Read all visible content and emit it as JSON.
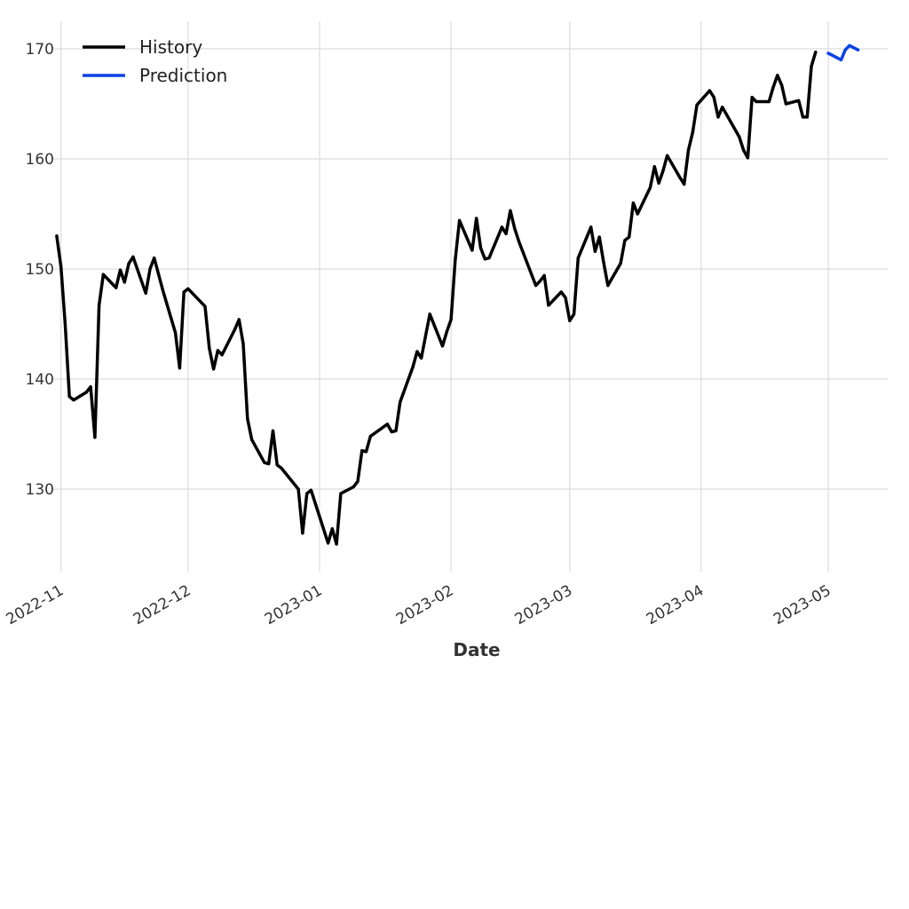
{
  "chart_data": {
    "type": "line",
    "title": "",
    "xlabel": "Date",
    "ylabel": "",
    "grid": true,
    "legend_position": "top-left",
    "x_type": "date",
    "xlim": [
      "2022-10-26",
      "2023-05-15"
    ],
    "ylim": [
      122.5,
      172.5
    ],
    "x_ticks": [
      "2022-11-01",
      "2022-12-01",
      "2023-01-01",
      "2023-02-01",
      "2023-03-01",
      "2023-04-01",
      "2023-05-01"
    ],
    "x_tick_labels": [
      "2022-11",
      "2022-12",
      "2023-01",
      "2023-02",
      "2023-03",
      "2023-04",
      "2023-05"
    ],
    "y_ticks": [
      130,
      140,
      150,
      160,
      170
    ],
    "y_tick_labels": [
      "130",
      "140",
      "150",
      "160",
      "170"
    ],
    "series": [
      {
        "name": "History",
        "color": "#000000",
        "points": [
          [
            "2022-10-31",
            153.0
          ],
          [
            "2022-11-01",
            150.2
          ],
          [
            "2022-11-02",
            145.0
          ],
          [
            "2022-11-03",
            138.4
          ],
          [
            "2022-11-04",
            138.1
          ],
          [
            "2022-11-07",
            138.8
          ],
          [
            "2022-11-08",
            139.3
          ],
          [
            "2022-11-09",
            134.7
          ],
          [
            "2022-11-10",
            146.7
          ],
          [
            "2022-11-11",
            149.5
          ],
          [
            "2022-11-14",
            148.3
          ],
          [
            "2022-11-15",
            149.9
          ],
          [
            "2022-11-16",
            148.8
          ],
          [
            "2022-11-17",
            150.5
          ],
          [
            "2022-11-18",
            151.1
          ],
          [
            "2022-11-21",
            147.8
          ],
          [
            "2022-11-22",
            150.0
          ],
          [
            "2022-11-23",
            151.0
          ],
          [
            "2022-11-25",
            148.1
          ],
          [
            "2022-11-28",
            144.2
          ],
          [
            "2022-11-29",
            141.0
          ],
          [
            "2022-11-30",
            147.9
          ],
          [
            "2022-12-01",
            148.2
          ],
          [
            "2022-12-05",
            146.6
          ],
          [
            "2022-12-06",
            142.8
          ],
          [
            "2022-12-07",
            140.9
          ],
          [
            "2022-12-08",
            142.6
          ],
          [
            "2022-12-09",
            142.2
          ],
          [
            "2022-12-12",
            144.5
          ],
          [
            "2022-12-13",
            145.4
          ],
          [
            "2022-12-14",
            143.2
          ],
          [
            "2022-12-15",
            136.4
          ],
          [
            "2022-12-16",
            134.5
          ],
          [
            "2022-12-19",
            132.4
          ],
          [
            "2022-12-20",
            132.3
          ],
          [
            "2022-12-21",
            135.3
          ],
          [
            "2022-12-22",
            132.2
          ],
          [
            "2022-12-23",
            131.9
          ],
          [
            "2022-12-27",
            130.0
          ],
          [
            "2022-12-28",
            126.0
          ],
          [
            "2022-12-29",
            129.6
          ],
          [
            "2022-12-30",
            129.9
          ],
          [
            "2023-01-03",
            125.1
          ],
          [
            "2023-01-04",
            126.4
          ],
          [
            "2023-01-05",
            125.0
          ],
          [
            "2023-01-06",
            129.6
          ],
          [
            "2023-01-09",
            130.2
          ],
          [
            "2023-01-10",
            130.7
          ],
          [
            "2023-01-11",
            133.5
          ],
          [
            "2023-01-12",
            133.4
          ],
          [
            "2023-01-13",
            134.8
          ],
          [
            "2023-01-17",
            135.9
          ],
          [
            "2023-01-18",
            135.2
          ],
          [
            "2023-01-19",
            135.3
          ],
          [
            "2023-01-20",
            137.9
          ],
          [
            "2023-01-23",
            141.1
          ],
          [
            "2023-01-24",
            142.5
          ],
          [
            "2023-01-25",
            141.9
          ],
          [
            "2023-01-26",
            143.9
          ],
          [
            "2023-01-27",
            145.9
          ],
          [
            "2023-01-30",
            143.0
          ],
          [
            "2023-01-31",
            144.3
          ],
          [
            "2023-02-01",
            145.4
          ],
          [
            "2023-02-02",
            150.8
          ],
          [
            "2023-02-03",
            154.4
          ],
          [
            "2023-02-06",
            151.7
          ],
          [
            "2023-02-07",
            154.6
          ],
          [
            "2023-02-08",
            151.9
          ],
          [
            "2023-02-09",
            150.9
          ],
          [
            "2023-02-10",
            151.0
          ],
          [
            "2023-02-13",
            153.8
          ],
          [
            "2023-02-14",
            153.2
          ],
          [
            "2023-02-15",
            155.3
          ],
          [
            "2023-02-16",
            153.7
          ],
          [
            "2023-02-17",
            152.5
          ],
          [
            "2023-02-21",
            148.5
          ],
          [
            "2023-02-22",
            148.9
          ],
          [
            "2023-02-23",
            149.4
          ],
          [
            "2023-02-24",
            146.7
          ],
          [
            "2023-02-27",
            147.9
          ],
          [
            "2023-02-28",
            147.4
          ],
          [
            "2023-03-01",
            145.3
          ],
          [
            "2023-03-02",
            145.9
          ],
          [
            "2023-03-03",
            151.0
          ],
          [
            "2023-03-06",
            153.8
          ],
          [
            "2023-03-07",
            151.6
          ],
          [
            "2023-03-08",
            152.9
          ],
          [
            "2023-03-09",
            150.6
          ],
          [
            "2023-03-10",
            148.5
          ],
          [
            "2023-03-13",
            150.5
          ],
          [
            "2023-03-14",
            152.6
          ],
          [
            "2023-03-15",
            152.9
          ],
          [
            "2023-03-16",
            156.0
          ],
          [
            "2023-03-17",
            155.0
          ],
          [
            "2023-03-20",
            157.4
          ],
          [
            "2023-03-21",
            159.3
          ],
          [
            "2023-03-22",
            157.8
          ],
          [
            "2023-03-23",
            158.9
          ],
          [
            "2023-03-24",
            160.3
          ],
          [
            "2023-03-27",
            158.3
          ],
          [
            "2023-03-28",
            157.7
          ],
          [
            "2023-03-29",
            160.8
          ],
          [
            "2023-03-30",
            162.4
          ],
          [
            "2023-03-31",
            164.9
          ],
          [
            "2023-04-03",
            166.2
          ],
          [
            "2023-04-04",
            165.6
          ],
          [
            "2023-04-05",
            163.8
          ],
          [
            "2023-04-06",
            164.7
          ],
          [
            "2023-04-10",
            162.0
          ],
          [
            "2023-04-11",
            160.8
          ],
          [
            "2023-04-12",
            160.1
          ],
          [
            "2023-04-13",
            165.6
          ],
          [
            "2023-04-14",
            165.2
          ],
          [
            "2023-04-17",
            165.2
          ],
          [
            "2023-04-18",
            166.5
          ],
          [
            "2023-04-19",
            167.6
          ],
          [
            "2023-04-20",
            166.7
          ],
          [
            "2023-04-21",
            165.0
          ],
          [
            "2023-04-24",
            165.3
          ],
          [
            "2023-04-25",
            163.8
          ],
          [
            "2023-04-26",
            163.8
          ],
          [
            "2023-04-27",
            168.4
          ],
          [
            "2023-04-28",
            169.7
          ]
        ]
      },
      {
        "name": "Prediction",
        "color": "#0a41e6",
        "points": [
          [
            "2023-05-01",
            169.6
          ],
          [
            "2023-05-02",
            169.4
          ],
          [
            "2023-05-03",
            169.2
          ],
          [
            "2023-05-04",
            169.0
          ],
          [
            "2023-05-05",
            169.9
          ],
          [
            "2023-05-06",
            170.3
          ],
          [
            "2023-05-07",
            170.1
          ],
          [
            "2023-05-08",
            169.9
          ]
        ]
      }
    ]
  }
}
